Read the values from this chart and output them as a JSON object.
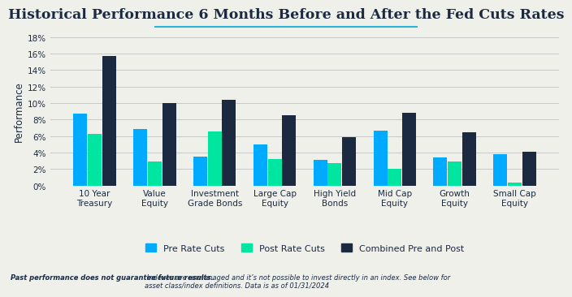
{
  "title": "Historical Performance 6 Months Before and After the Fed Cuts Rates",
  "title_underline_color": "#29b5d8",
  "categories": [
    "10 Year\nTreasury",
    "Value\nEquity",
    "Investment\nGrade Bonds",
    "Large Cap\nEquity",
    "High Yield\nBonds",
    "Mid Cap\nEquity",
    "Growth\nEquity",
    "Small Cap\nEquity"
  ],
  "pre_rate_cuts": [
    8.7,
    6.8,
    3.5,
    5.0,
    3.1,
    6.7,
    3.4,
    3.8
  ],
  "post_rate_cuts": [
    6.3,
    2.9,
    6.6,
    3.2,
    2.7,
    2.0,
    2.9,
    0.4
  ],
  "combined": [
    15.7,
    10.0,
    10.4,
    8.5,
    5.9,
    8.8,
    6.5,
    4.1
  ],
  "color_pre": "#00aaff",
  "color_post": "#00e5a0",
  "color_comb": "#1b2a40",
  "ylabel": "Performance",
  "ylim": [
    0,
    18
  ],
  "yticks": [
    0,
    2,
    4,
    6,
    8,
    10,
    12,
    14,
    16,
    18
  ],
  "ytick_labels": [
    "0%",
    "2%",
    "4%",
    "6%",
    "8%",
    "10%",
    "12%",
    "14%",
    "16%",
    "18%"
  ],
  "legend_labels": [
    "Pre Rate Cuts",
    "Post Rate Cuts",
    "Combined Pre and Post"
  ],
  "footnote_bold": "Past performance does not guarantee future results.",
  "footnote_regular": " Indexes are unmanaged and it’s not possible to invest directly in an index. See below for\nasset class/index definitions. Data is as of 01/31/2024",
  "bg_color": "#f0f0eb",
  "grid_color": "#c8c8c8",
  "title_color": "#1b2a40",
  "axis_color": "#1b2a40",
  "footnote_color": "#1b2a40"
}
